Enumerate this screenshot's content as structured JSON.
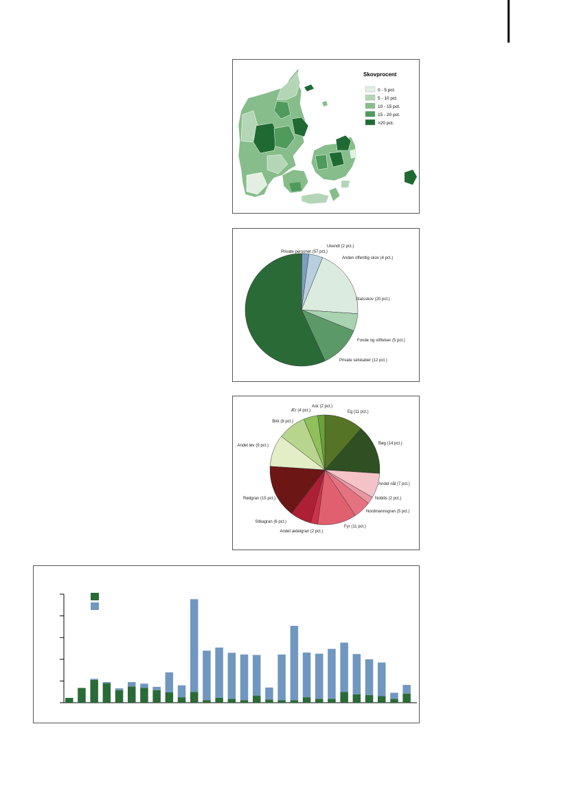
{
  "map": {
    "legend_title": "Skovprocent",
    "legend": [
      {
        "label": "0 - 5 pct.",
        "color": "#e3efe3"
      },
      {
        "label": "5 - 10 pct.",
        "color": "#b4d6b6"
      },
      {
        "label": "10 - 15 pct.",
        "color": "#86bd8b"
      },
      {
        "label": "15 - 20 pct.",
        "color": "#4f9a5c"
      },
      {
        "label": ">20 pct.",
        "color": "#1f6a32"
      }
    ]
  },
  "chart_data": [
    {
      "type": "pie",
      "slices": [
        {
          "label": "Private personer (57 pct.)",
          "value": 57,
          "color": "#2a6a37"
        },
        {
          "label": "Ukendt (2 pct.)",
          "value": 2,
          "color": "#7d9fbf"
        },
        {
          "label": "Anden offentlig skov (4 pct.)",
          "value": 4,
          "color": "#b9cfe0"
        },
        {
          "label": "Statsskov (20 pct.)",
          "value": 20,
          "color": "#dcebe0"
        },
        {
          "label": "Fonde og stiftelser (5 pct.)",
          "value": 5,
          "color": "#a9d2b0"
        },
        {
          "label": "Private selskaber (12 pct.)",
          "value": 12,
          "color": "#5c9968"
        }
      ]
    },
    {
      "type": "pie",
      "slices": [
        {
          "label": "Eg (11 pct.)",
          "value": 11,
          "color": "#557426"
        },
        {
          "label": "Bøg (14 pct.)",
          "value": 14,
          "color": "#304f22"
        },
        {
          "label": "Andet nål (7 pct.)",
          "value": 7,
          "color": "#f4c3c8"
        },
        {
          "label": "Nobilis (2 pct.)",
          "value": 2,
          "color": "#ea97a3"
        },
        {
          "label": "Nordmannsgran (5 pct.)",
          "value": 5,
          "color": "#e57281"
        },
        {
          "label": "Fyr (11 pct.)",
          "value": 11,
          "color": "#e0606f"
        },
        {
          "label": "Andet ædelgran (2 pct.)",
          "value": 2,
          "color": "#d13049"
        },
        {
          "label": "Sitkagran (6 pct.)",
          "value": 6,
          "color": "#ad1f35"
        },
        {
          "label": "Rødgran (15 pct.)",
          "value": 15,
          "color": "#6d1616"
        },
        {
          "label": "Andet løv (9 pct.)",
          "value": 9,
          "color": "#e3edc6"
        },
        {
          "label": "Birk (8 pct.)",
          "value": 8,
          "color": "#b7d58c"
        },
        {
          "label": "Ær (4 pct.)",
          "value": 4,
          "color": "#8fc05a"
        },
        {
          "label": "Ask (2 pct.)",
          "value": 2,
          "color": "#6aa23a"
        }
      ]
    },
    {
      "type": "bar",
      "stacked": true,
      "ylim": [
        0,
        5
      ],
      "series": [
        {
          "color": "#2a6a37",
          "values": [
            0.22,
            0.68,
            1.05,
            0.9,
            0.58,
            0.75,
            0.68,
            0.58,
            0.48,
            0.25,
            0.5,
            0.12,
            0.22,
            0.18,
            0.12,
            0.33,
            0.15,
            0.12,
            0.12,
            0.25,
            0.18,
            0.18,
            0.5,
            0.38,
            0.35,
            0.3,
            0.18,
            0.42
          ]
        },
        {
          "color": "#7097bf",
          "values": [
            0,
            0,
            0.05,
            0.05,
            0.08,
            0.2,
            0.2,
            0.15,
            0.92,
            0.55,
            4.27,
            2.28,
            2.32,
            2.12,
            2.1,
            1.87,
            0.55,
            2.1,
            3.42,
            2.06,
            2.08,
            2.3,
            2.27,
            1.86,
            1.65,
            1.55,
            0.28,
            0.4
          ]
        }
      ]
    }
  ]
}
